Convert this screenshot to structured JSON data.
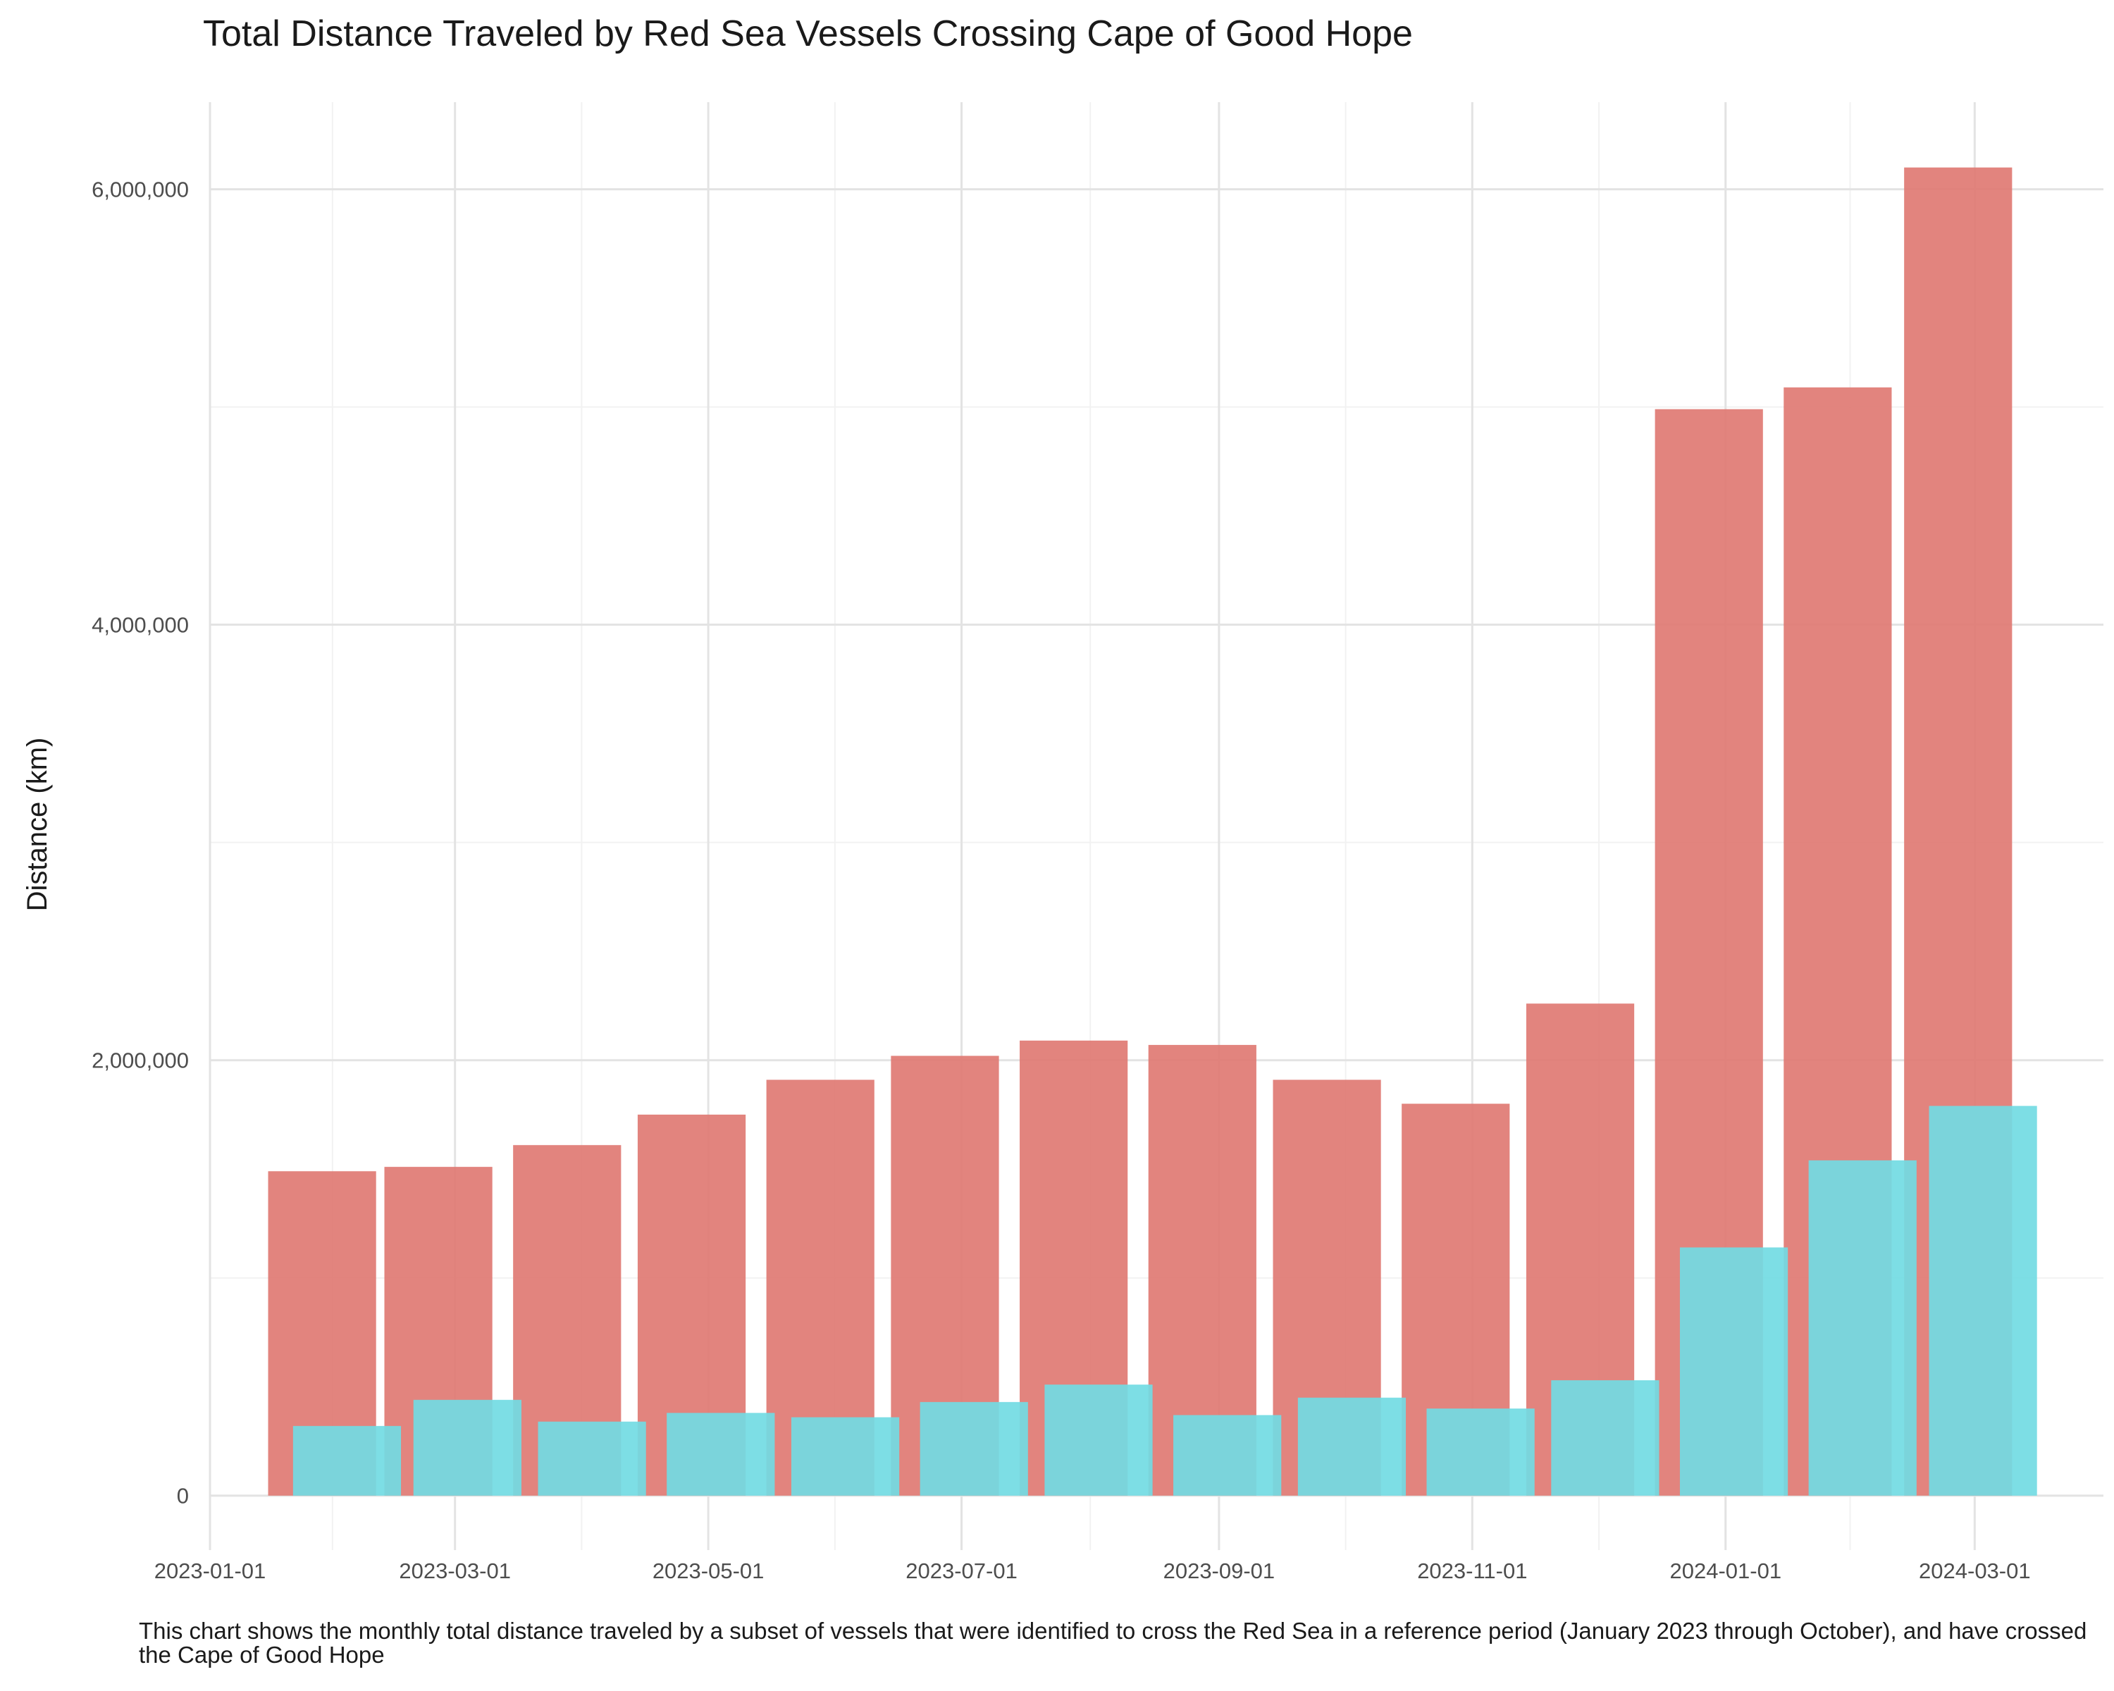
{
  "chart_data": {
    "type": "bar",
    "title": "Total Distance Traveled by Red Sea Vessels Crossing Cape of Good Hope",
    "ylabel": "Distance (km)",
    "xlabel": "",
    "caption": "This chart shows the monthly total distance traveled by a subset of vessels that were identified to cross the Red Sea in a reference period (January 2023 through October), and have crossed the Cape of Good Hope",
    "x_tick_labels": [
      "2023-01-01",
      "2023-03-01",
      "2023-05-01",
      "2023-07-01",
      "2023-09-01",
      "2023-11-01",
      "2024-01-01",
      "2024-03-01"
    ],
    "y_tick_labels": [
      "0",
      "2,000,000",
      "4,000,000",
      "6,000,000"
    ],
    "y_ticks": [
      0,
      2000000,
      4000000,
      6000000
    ],
    "ylim": [
      -250000,
      6400000
    ],
    "xlim": [
      "2023-01-01",
      "2024-04-01"
    ],
    "grid": true,
    "legend": "none",
    "series": [
      {
        "color": "#e07a73",
        "points": [
          {
            "date": "2023-01-28",
            "value": 1490000
          },
          {
            "date": "2023-02-25",
            "value": 1510000
          },
          {
            "date": "2023-03-28",
            "value": 1610000
          },
          {
            "date": "2023-04-27",
            "value": 1750000
          },
          {
            "date": "2023-05-28",
            "value": 1910000
          },
          {
            "date": "2023-06-27",
            "value": 2020000
          },
          {
            "date": "2023-07-28",
            "value": 2090000
          },
          {
            "date": "2023-08-28",
            "value": 2070000
          },
          {
            "date": "2023-09-27",
            "value": 1910000
          },
          {
            "date": "2023-10-28",
            "value": 1800000
          },
          {
            "date": "2023-11-27",
            "value": 2260000
          },
          {
            "date": "2023-12-28",
            "value": 4990000
          },
          {
            "date": "2024-01-28",
            "value": 5090000
          },
          {
            "date": "2024-02-26",
            "value": 6100000
          }
        ]
      },
      {
        "color": "#72dbe3",
        "points": [
          {
            "date": "2023-02-03",
            "value": 320000
          },
          {
            "date": "2023-03-04",
            "value": 440000
          },
          {
            "date": "2023-04-03",
            "value": 340000
          },
          {
            "date": "2023-05-04",
            "value": 380000
          },
          {
            "date": "2023-06-03",
            "value": 360000
          },
          {
            "date": "2023-07-04",
            "value": 430000
          },
          {
            "date": "2023-08-03",
            "value": 510000
          },
          {
            "date": "2023-09-03",
            "value": 370000
          },
          {
            "date": "2023-10-03",
            "value": 450000
          },
          {
            "date": "2023-11-03",
            "value": 400000
          },
          {
            "date": "2023-12-03",
            "value": 530000
          },
          {
            "date": "2024-01-03",
            "value": 1140000
          },
          {
            "date": "2024-02-03",
            "value": 1540000
          },
          {
            "date": "2024-03-03",
            "value": 1790000
          }
        ]
      }
    ]
  }
}
